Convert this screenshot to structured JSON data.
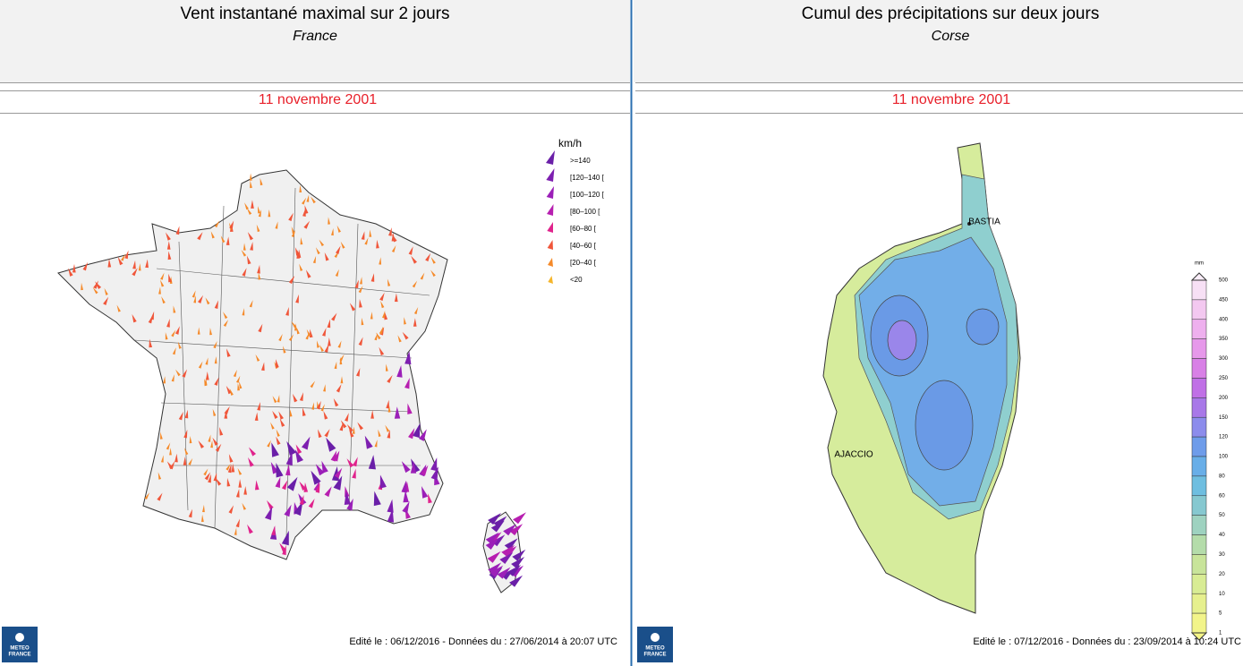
{
  "left": {
    "title": "Vent instantané maximal sur 2 jours",
    "subtitle": "France",
    "date": "11 novembre 2001",
    "legend": {
      "unit": "km/h",
      "classes": [
        ">=140",
        "[120–140 [",
        "[100–120 [",
        "[80–100 [",
        "[60–80 [",
        "[40–60 [",
        "[20–40 [",
        "<20"
      ],
      "colors": [
        "#6a1fa8",
        "#7d1fb0",
        "#9b1fb8",
        "#b71fb0",
        "#e0238c",
        "#f0563a",
        "#f58a2a",
        "#f5b52a"
      ]
    },
    "logo": [
      "METEO",
      "FRANCE"
    ],
    "footer": "Edité le : 06/12/2016 - Données du : 27/06/2014 à 20:07 UTC"
  },
  "right": {
    "title": "Cumul des précipitations sur deux jours",
    "subtitle": "Corse",
    "date": "11 novembre 2001",
    "cities": [
      "BASTIA",
      "AJACCIO"
    ],
    "colorbar": {
      "unit": "mm",
      "labels": [
        "500",
        "450",
        "400",
        "350",
        "300",
        "250",
        "200",
        "150",
        "120",
        "100",
        "80",
        "60",
        "50",
        "40",
        "30",
        "20",
        "10",
        "5",
        "1"
      ],
      "colors": [
        "#f7e0f5",
        "#f3c8f0",
        "#eeb0ee",
        "#e698ea",
        "#d880e6",
        "#c070e6",
        "#a878e8",
        "#8c8cec",
        "#6e9cea",
        "#68aee8",
        "#6ebee0",
        "#86c8d0",
        "#9ed2c0",
        "#b4dcaa",
        "#c8e49a",
        "#d8ec94",
        "#e6f08e",
        "#f2f48a"
      ]
    },
    "logo": [
      "METEO",
      "FRANCE"
    ],
    "footer": "Edité le : 07/12/2016 - Données du : 23/09/2014 à 10:24 UTC"
  }
}
